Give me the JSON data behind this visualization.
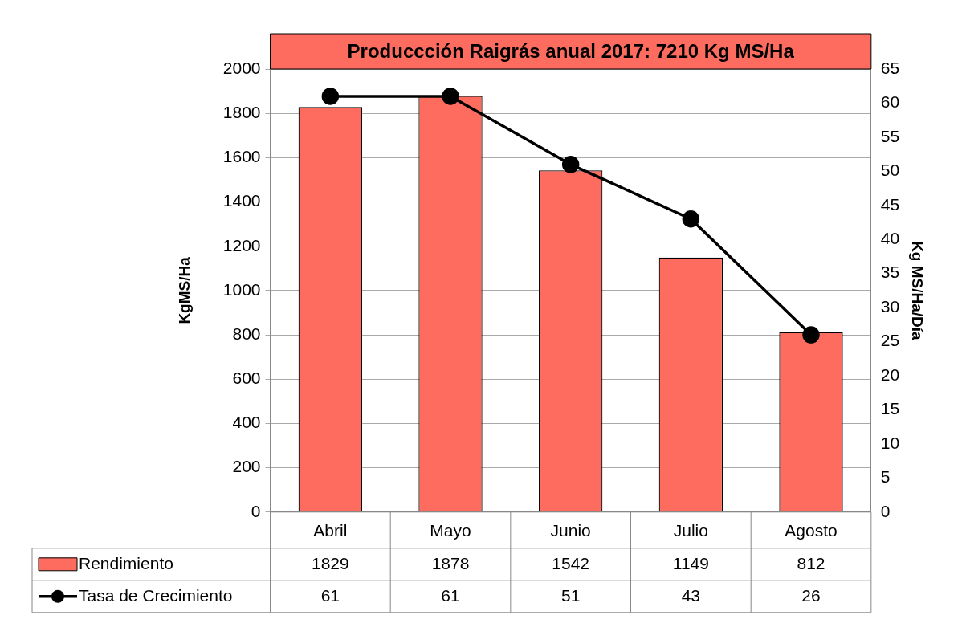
{
  "chart_data": {
    "type": "bar",
    "title": "Produccción Raigrás anual 2017: 7210 Kg MS/Ha",
    "categories": [
      "Abril",
      "Mayo",
      "Junio",
      "Julio",
      "Agosto"
    ],
    "series": [
      {
        "name": "Rendimiento",
        "color": "#fd6c5e",
        "values": [
          1829,
          1878,
          1542,
          1149,
          812
        ]
      },
      {
        "name": "Tasa de Crecimiento",
        "type": "line",
        "axis": "y2",
        "color": "#000000",
        "marker": "circle",
        "values": [
          61,
          61,
          51,
          43,
          26
        ]
      }
    ],
    "ylabel": "KgMS/Ha",
    "y2label": "Kg MS/Ha/Día",
    "ylim": [
      0,
      2000
    ],
    "yticks": [
      0,
      200,
      400,
      600,
      800,
      1000,
      1200,
      1400,
      1600,
      1800,
      2000
    ],
    "y2lim": [
      0,
      65
    ],
    "y2ticks": [
      0,
      5,
      10,
      15,
      20,
      25,
      30,
      35,
      40,
      45,
      50,
      55,
      60,
      65
    ],
    "grid": "y",
    "legend": "bottom",
    "data_labels": true
  }
}
